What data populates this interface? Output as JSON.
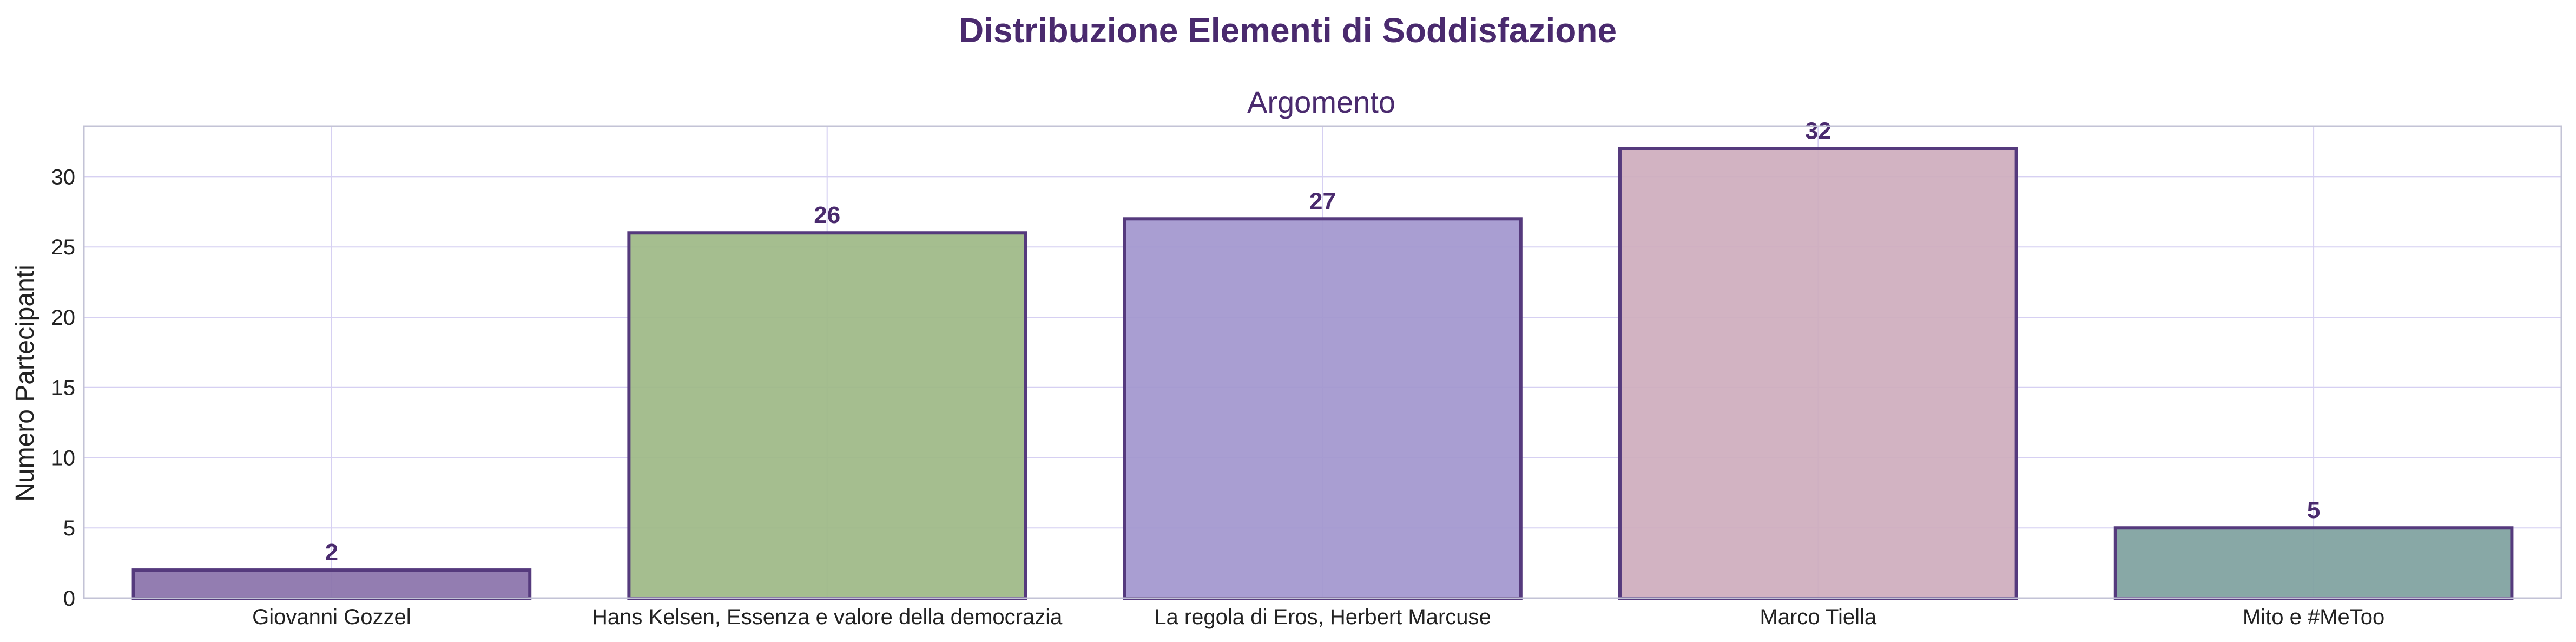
{
  "figure": {
    "suptitle": "Distribuzione Elementi di Soddisfazione"
  },
  "chart_data": {
    "type": "bar",
    "title": "Argomento",
    "xlabel": "",
    "ylabel": "Numero Partecipanti",
    "categories": [
      "Giovanni Gozzel",
      "Hans Kelsen, Essenza e valore della democrazia",
      "La regola di Eros, Herbert Marcuse",
      "Marco Tiella",
      "Mito e #MeToo"
    ],
    "values": [
      2,
      26,
      27,
      32,
      5
    ],
    "data_labels": [
      "2",
      "26",
      "27",
      "32",
      "5"
    ],
    "ylim": [
      0,
      33.6
    ],
    "yticks": [
      0,
      5,
      10,
      15,
      20,
      25,
      30
    ],
    "grid": true,
    "legend": "none",
    "colors": {
      "text": "#4a2a6e",
      "tick_text": "#222222",
      "bar_edge": "#553a7d",
      "grid": "#d6d0f2",
      "spine": "#c3c3d6",
      "bars": [
        "#8a72aa",
        "#9db886",
        "#a296ce",
        "#ceadbd",
        "#7ea19e"
      ]
    }
  }
}
